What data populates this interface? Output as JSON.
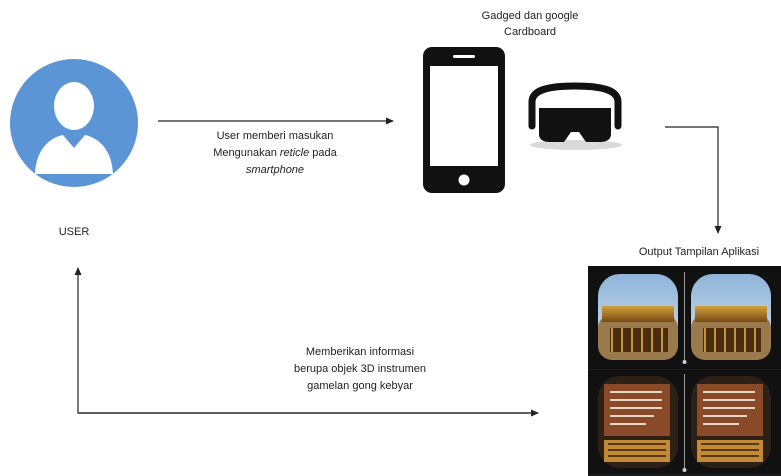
{
  "diagram": {
    "user_label": "USER",
    "device_caption_line1": "Gadged dan google",
    "device_caption_line2": "Cardboard",
    "input_arrow_line1": "User memberi masukan",
    "input_arrow_line2_pre": "Mengunakan ",
    "input_arrow_line2_italic": "reticle",
    "input_arrow_line2_post": " pada",
    "input_arrow_line3_italic": "smartphone",
    "output_label": "Output Tampilan Aplikasi",
    "feedback_line1": "Memberikan informasi",
    "feedback_line2": "berupa objek 3D instrumen",
    "feedback_line3": "gamelan gong kebyar"
  },
  "icons": {
    "user": "user-avatar-icon",
    "phone": "smartphone-icon",
    "cardboard": "vr-headset-icon",
    "screens": "vr-app-screenshot"
  },
  "colors": {
    "user_circle": "#5b95d6",
    "icon_black": "#111111",
    "arrow": "#222222"
  }
}
